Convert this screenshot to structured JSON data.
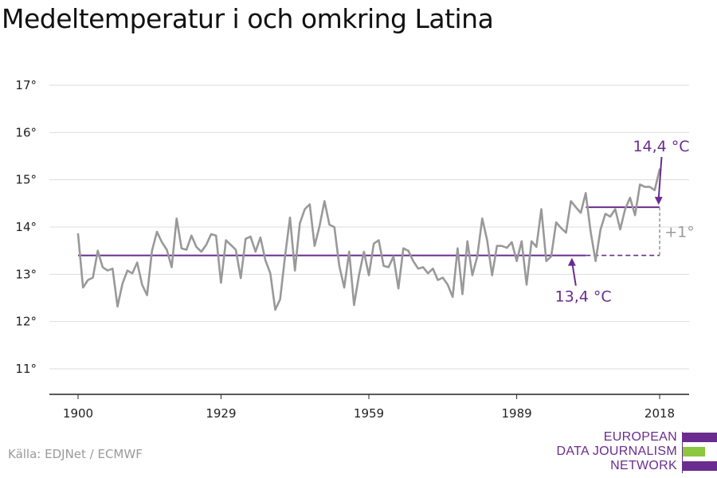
{
  "title": "Medeltemperatur i och omkring Latina",
  "source": "Källa: EDJNet / ECMWF",
  "logo": {
    "lines": [
      "EUROPEAN",
      "DATA JOURNALISM",
      "NETWORK"
    ],
    "colors": {
      "purple": "#6a2c8f",
      "green": "#8dc63f"
    }
  },
  "colors": {
    "series": "#999999",
    "reference": "#6a2c8f",
    "difference": "#9a9a9a",
    "grid": "#dddddd",
    "axis": "#222222"
  },
  "chart_data": {
    "type": "line",
    "title": "Medeltemperatur i och omkring Latina",
    "xlabel": "",
    "ylabel": "",
    "xlim": [
      1900,
      2018
    ],
    "ylim": [
      10.6,
      17.3
    ],
    "x_ticks": [
      1900,
      1929,
      1959,
      1989,
      2018
    ],
    "x_tick_labels": [
      "1900",
      "1929",
      "1959",
      "1989",
      "2018"
    ],
    "y_ticks": [
      11,
      12,
      13,
      14,
      15,
      16,
      17
    ],
    "y_tick_labels": [
      "11°",
      "12°",
      "13°",
      "14°",
      "15°",
      "16°",
      "17°"
    ],
    "grid": true,
    "series": [
      {
        "name": "",
        "x": [
          1900,
          1901,
          1902,
          1903,
          1904,
          1905,
          1906,
          1907,
          1908,
          1909,
          1910,
          1911,
          1912,
          1913,
          1914,
          1915,
          1916,
          1917,
          1918,
          1919,
          1920,
          1921,
          1922,
          1923,
          1924,
          1925,
          1926,
          1927,
          1928,
          1929,
          1930,
          1931,
          1932,
          1933,
          1934,
          1935,
          1936,
          1937,
          1938,
          1939,
          1940,
          1941,
          1942,
          1943,
          1944,
          1945,
          1946,
          1947,
          1948,
          1949,
          1950,
          1951,
          1952,
          1953,
          1954,
          1955,
          1956,
          1957,
          1958,
          1959,
          1960,
          1961,
          1962,
          1963,
          1964,
          1965,
          1966,
          1967,
          1968,
          1969,
          1970,
          1971,
          1972,
          1973,
          1974,
          1975,
          1976,
          1977,
          1978,
          1979,
          1980,
          1981,
          1982,
          1983,
          1984,
          1985,
          1986,
          1987,
          1988,
          1989,
          1990,
          1991,
          1992,
          1993,
          1994,
          1995,
          1996,
          1997,
          1998,
          1999,
          2000,
          2001,
          2002,
          2003,
          2004,
          2005,
          2006,
          2007,
          2008,
          2009,
          2010,
          2011,
          2012,
          2013,
          2014,
          2015,
          2016,
          2017,
          2018
        ],
        "values": [
          13.85,
          12.72,
          12.88,
          12.93,
          13.5,
          13.15,
          13.08,
          13.12,
          12.32,
          12.8,
          13.08,
          13.02,
          13.25,
          12.78,
          12.56,
          13.5,
          13.9,
          13.68,
          13.52,
          13.15,
          14.18,
          13.55,
          13.52,
          13.82,
          13.58,
          13.48,
          13.62,
          13.85,
          13.82,
          12.82,
          13.72,
          13.62,
          13.52,
          12.92,
          13.75,
          13.8,
          13.48,
          13.78,
          13.3,
          13.02,
          12.25,
          12.47,
          13.38,
          14.2,
          13.08,
          14.08,
          14.38,
          14.48,
          13.6,
          14.02,
          14.55,
          14.05,
          14.0,
          13.18,
          12.72,
          13.48,
          12.35,
          12.98,
          13.48,
          12.98,
          13.65,
          13.72,
          13.18,
          13.15,
          13.38,
          12.7,
          13.55,
          13.5,
          13.28,
          13.12,
          13.15,
          13.02,
          13.12,
          12.88,
          12.93,
          12.78,
          12.52,
          13.55,
          12.58,
          13.7,
          12.98,
          13.38,
          14.18,
          13.72,
          12.98,
          13.6,
          13.6,
          13.56,
          13.68,
          13.28,
          13.7,
          12.78,
          13.7,
          13.58,
          14.38,
          13.28,
          13.38,
          14.1,
          13.98,
          13.88,
          14.55,
          14.42,
          14.3,
          14.72,
          13.9,
          13.28,
          13.95,
          14.28,
          14.22,
          14.38,
          13.95,
          14.38,
          14.62,
          14.25,
          14.9,
          14.85,
          14.85,
          14.78,
          15.22
        ]
      }
    ],
    "reference_lines": [
      {
        "label": "13,4 °C",
        "value": 13.4,
        "x_start": 1900,
        "x_end": 2003
      },
      {
        "label": "14,4 °C",
        "value": 14.42,
        "x_start": 2003,
        "x_end": 2018
      }
    ],
    "difference_label": "+1°",
    "annotations": [
      "13,4 °C",
      "14,4 °C",
      "+1°"
    ]
  }
}
